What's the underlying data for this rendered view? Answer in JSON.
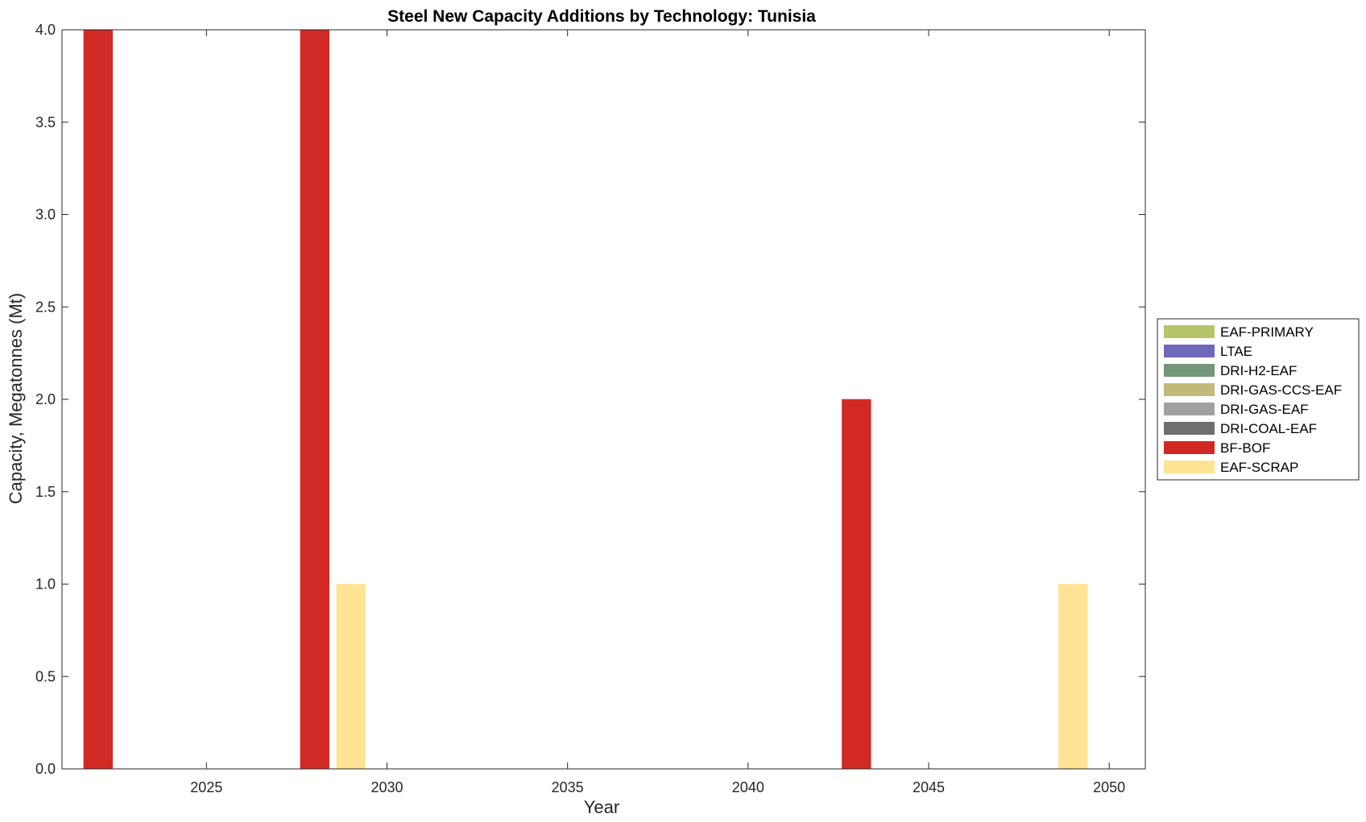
{
  "chart_data": {
    "type": "bar",
    "title": "Steel New Capacity Additions by Technology: Tunisia",
    "xlabel": "Year",
    "ylabel": "Capacity, Megatonnes (Mt)",
    "xlim": [
      2021,
      2051
    ],
    "ylim": [
      0,
      4
    ],
    "xticks": [
      2025,
      2030,
      2035,
      2040,
      2045,
      2050
    ],
    "yticks": [
      "0.0",
      "0.5",
      "1.0",
      "1.5",
      "2.0",
      "2.5",
      "3.0",
      "3.5",
      "4.0"
    ],
    "grid": false,
    "legend_position": "right",
    "series": [
      {
        "name": "EAF-PRIMARY",
        "color": "#b8c46a",
        "points": []
      },
      {
        "name": "LTAE",
        "color": "#7068b8",
        "points": []
      },
      {
        "name": "DRI-H2-EAF",
        "color": "#74967a",
        "points": []
      },
      {
        "name": "DRI-GAS-CCS-EAF",
        "color": "#c2b97a",
        "points": []
      },
      {
        "name": "DRI-GAS-EAF",
        "color": "#a0a0a0",
        "points": []
      },
      {
        "name": "DRI-COAL-EAF",
        "color": "#6e6e6e",
        "points": []
      },
      {
        "name": "BF-BOF",
        "color": "#d12a24",
        "points": [
          {
            "x": 2022,
            "y": 4.0
          },
          {
            "x": 2028,
            "y": 4.0
          },
          {
            "x": 2043,
            "y": 2.0
          }
        ]
      },
      {
        "name": "EAF-SCRAP",
        "color": "#ffe394",
        "points": [
          {
            "x": 2029,
            "y": 1.0
          },
          {
            "x": 2049,
            "y": 1.0
          }
        ]
      }
    ]
  }
}
